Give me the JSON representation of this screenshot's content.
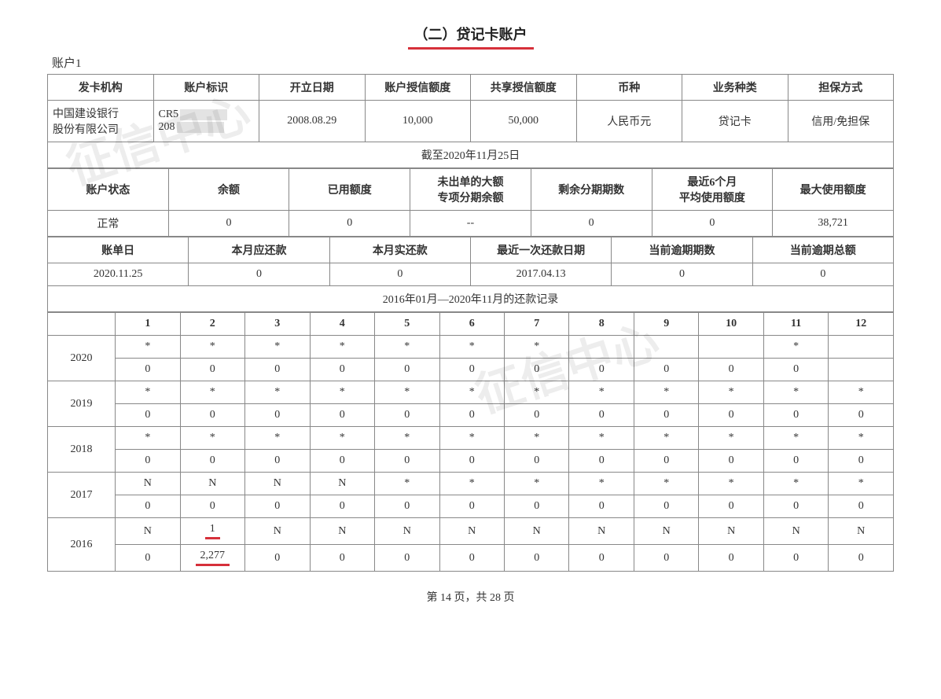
{
  "title": "（二）贷记卡账户",
  "account_label": "账户1",
  "t1": {
    "headers": [
      "发卡机构",
      "账户标识",
      "开立日期",
      "账户授信额度",
      "共享授信额度",
      "币种",
      "业务种类",
      "担保方式"
    ],
    "row": {
      "issuer_l1": "中国建设银行",
      "issuer_l2": "股份有限公司",
      "acct_id_l1": "CR5",
      "acct_id_l2": "208",
      "open_date": "2008.08.29",
      "credit_limit": "10,000",
      "shared_limit": "50,000",
      "currency": "人民币元",
      "biz_type": "贷记卡",
      "guarantee": "信用/免担保"
    }
  },
  "asof_span": "截至2020年11月25日",
  "t2": {
    "headers": [
      "账户状态",
      "余额",
      "已用额度",
      "未出单的大额\n专项分期余额",
      "剩余分期期数",
      "最近6个月\n平均使用额度",
      "最大使用额度"
    ],
    "row": [
      "正常",
      "0",
      "0",
      "--",
      "0",
      "0",
      "38,721"
    ]
  },
  "t3": {
    "headers": [
      "账单日",
      "本月应还款",
      "本月实还款",
      "最近一次还款日期",
      "当前逾期期数",
      "当前逾期总额"
    ],
    "row": [
      "2020.11.25",
      "0",
      "0",
      "2017.04.13",
      "0",
      "0"
    ]
  },
  "history_span": "2016年01月—2020年11月的还款记录",
  "months": [
    "1",
    "2",
    "3",
    "4",
    "5",
    "6",
    "7",
    "8",
    "9",
    "10",
    "11",
    "12"
  ],
  "years": [
    {
      "year": "2020",
      "r1": [
        "*",
        "*",
        "*",
        "*",
        "*",
        "*",
        "*",
        "",
        "",
        "",
        "*",
        ""
      ],
      "r2": [
        "0",
        "0",
        "0",
        "0",
        "0",
        "0",
        "0",
        "0",
        "0",
        "0",
        "0",
        ""
      ]
    },
    {
      "year": "2019",
      "r1": [
        "*",
        "*",
        "*",
        "*",
        "*",
        "*",
        "*",
        "*",
        "*",
        "*",
        "*",
        "*"
      ],
      "r2": [
        "0",
        "0",
        "0",
        "0",
        "0",
        "0",
        "0",
        "0",
        "0",
        "0",
        "0",
        "0"
      ]
    },
    {
      "year": "2018",
      "r1": [
        "*",
        "*",
        "*",
        "*",
        "*",
        "*",
        "*",
        "*",
        "*",
        "*",
        "*",
        "*"
      ],
      "r2": [
        "0",
        "0",
        "0",
        "0",
        "0",
        "0",
        "0",
        "0",
        "0",
        "0",
        "0",
        "0"
      ]
    },
    {
      "year": "2017",
      "r1": [
        "N",
        "N",
        "N",
        "N",
        "*",
        "*",
        "*",
        "*",
        "*",
        "*",
        "*",
        "*"
      ],
      "r2": [
        "0",
        "0",
        "0",
        "0",
        "0",
        "0",
        "0",
        "0",
        "0",
        "0",
        "0",
        "0"
      ]
    },
    {
      "year": "2016",
      "r1": [
        "N",
        "1",
        "N",
        "N",
        "N",
        "N",
        "N",
        "N",
        "N",
        "N",
        "N",
        "N"
      ],
      "r2": [
        "0",
        "2,277",
        "0",
        "0",
        "0",
        "0",
        "0",
        "0",
        "0",
        "0",
        "0",
        "0"
      ],
      "highlight_col": 1
    }
  ],
  "footer": "第 14 页，共 28 页",
  "colors": {
    "underline": "#d6303a",
    "border": "#888888",
    "text": "#333333",
    "mask": "#e3e3e3"
  }
}
